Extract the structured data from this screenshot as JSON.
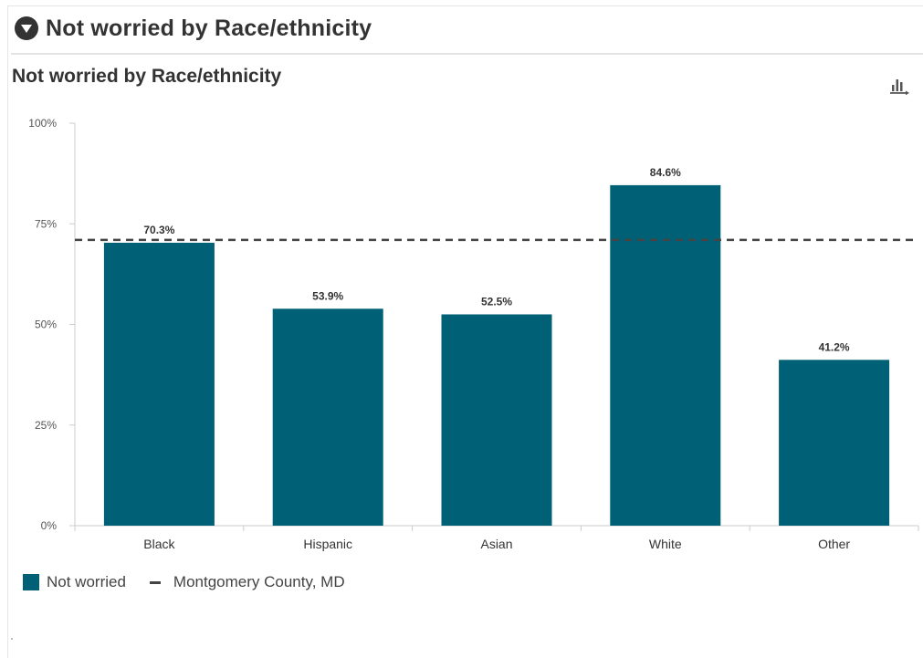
{
  "panel": {
    "header_title": "Not worried by Race/ethnicity"
  },
  "icons": {
    "collapse": "chevron-down-circle-icon",
    "export": "bar-chart-export-icon"
  },
  "colors": {
    "bar": "#006076",
    "reference_line": "#444444",
    "axis": "#cccccc"
  },
  "chart_data": {
    "type": "bar",
    "title": "Not worried by Race/ethnicity",
    "xlabel": "",
    "ylabel": "",
    "categories": [
      "Black",
      "Hispanic",
      "Asian",
      "White",
      "Other"
    ],
    "series": [
      {
        "name": "Not worried",
        "values": [
          70.3,
          53.9,
          52.5,
          84.6,
          41.2
        ],
        "labels": [
          "70.3%",
          "53.9%",
          "52.5%",
          "84.6%",
          "41.2%"
        ]
      }
    ],
    "reference_line": {
      "name": "Montgomery County, MD",
      "value": 71,
      "style": "dashed"
    },
    "yticks": [
      {
        "value": 0,
        "label": "0%"
      },
      {
        "value": 25,
        "label": "25%"
      },
      {
        "value": 50,
        "label": "50%"
      },
      {
        "value": 75,
        "label": "75%"
      },
      {
        "value": 100,
        "label": "100%"
      }
    ],
    "ylim": [
      0,
      100
    ],
    "grid": false,
    "legend_position": "bottom-left"
  }
}
